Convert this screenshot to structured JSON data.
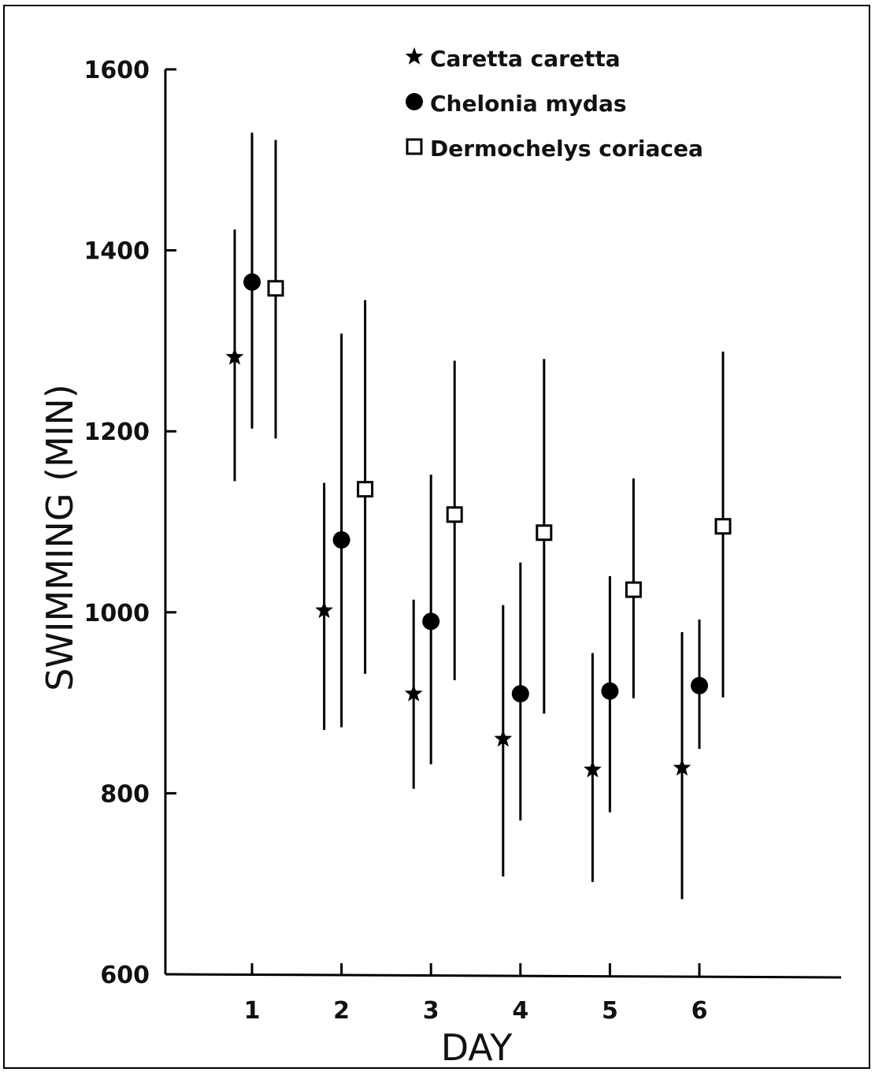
{
  "chart_data": {
    "type": "scatter",
    "title": "",
    "xlabel": "DAY",
    "ylabel": "SWIMMING (MIN)",
    "x": [
      1,
      2,
      3,
      4,
      5,
      6
    ],
    "x_ticks": [
      "1",
      "2",
      "3",
      "4",
      "5",
      "6"
    ],
    "y_ticks": [
      "600",
      "800",
      "1000",
      "1200",
      "1400",
      "1600"
    ],
    "ylim": [
      600,
      1600
    ],
    "grid": false,
    "legend_position": "top-right",
    "series": [
      {
        "name": "Caretta caretta",
        "marker": "star",
        "values": [
          1282,
          1002,
          910,
          860,
          826,
          828
        ],
        "error_low": [
          1145,
          870,
          805,
          708,
          702,
          683
        ],
        "error_high": [
          1423,
          1143,
          1014,
          1008,
          955,
          978
        ]
      },
      {
        "name": "Chelonia mydas",
        "marker": "filled-circle",
        "values": [
          1365,
          1080,
          990,
          910,
          913,
          919
        ],
        "error_low": [
          1203,
          873,
          832,
          770,
          779,
          849
        ],
        "error_high": [
          1530,
          1308,
          1152,
          1055,
          1040,
          992
        ]
      },
      {
        "name": "Dermochelys coriacea",
        "marker": "open-square",
        "values": [
          1358,
          1136,
          1108,
          1088,
          1025,
          1095
        ],
        "error_low": [
          1192,
          932,
          925,
          888,
          905,
          906
        ],
        "error_high": [
          1522,
          1345,
          1278,
          1280,
          1148,
          1288
        ]
      }
    ]
  }
}
